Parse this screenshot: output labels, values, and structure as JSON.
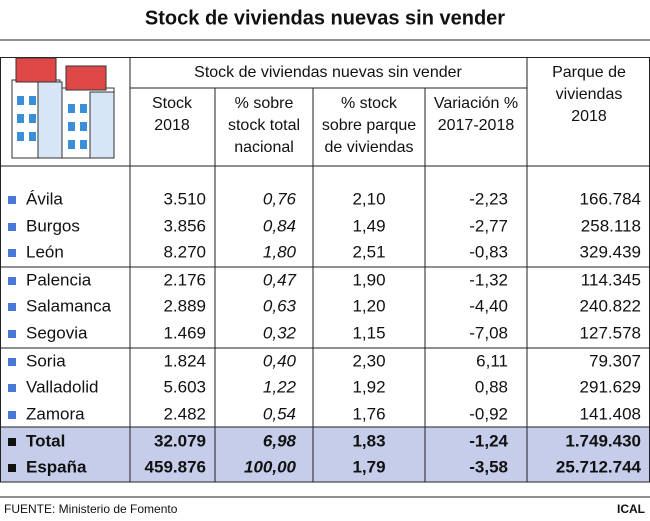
{
  "title": "Stock de viviendas nuevas sin vender",
  "header": {
    "group": "Stock de viviendas nuevas sin vender",
    "columns": [
      [
        "Stock",
        "2018"
      ],
      [
        "% sobre",
        "stock total",
        "nacional"
      ],
      [
        "% stock",
        "sobre parque",
        "de viviendas"
      ],
      [
        "Variación %",
        "2017-2018"
      ]
    ],
    "last": [
      "Parque de",
      "viviendas",
      "2018"
    ]
  },
  "table": {
    "rows": [
      [
        "Ávila",
        "3.510",
        "0,76",
        "2,10",
        "-2,23",
        "166.784"
      ],
      [
        "Burgos",
        "3.856",
        "0,84",
        "1,49",
        "-2,77",
        "258.118"
      ],
      [
        "León",
        "8.270",
        "1,80",
        "2,51",
        "-0,83",
        "329.439"
      ],
      [
        "Palencia",
        "2.176",
        "0,47",
        "1,90",
        "-1,32",
        "114.345"
      ],
      [
        "Salamanca",
        "2.889",
        "0,63",
        "1,20",
        "-4,40",
        "240.822"
      ],
      [
        "Segovia",
        "1.469",
        "0,32",
        "1,15",
        "-7,08",
        "127.578"
      ],
      [
        "Soria",
        "1.824",
        "0,40",
        "2,30",
        "6,11",
        "79.307"
      ],
      [
        "Valladolid",
        "5.603",
        "1,22",
        "1,92",
        "0,88",
        "291.629"
      ],
      [
        "Zamora",
        "2.482",
        "0,54",
        "1,76",
        "-0,92",
        "141.408"
      ],
      [
        "Total",
        "32.079",
        "6,98",
        "1,83",
        "-1,24",
        "1.749.430"
      ],
      [
        "España",
        "459.876",
        "100,00",
        "1,79",
        "-3,58",
        "25.712.744"
      ]
    ]
  },
  "footer": {
    "source": "FUENTE: Ministerio de Fomento",
    "brand": "ICAL"
  }
}
